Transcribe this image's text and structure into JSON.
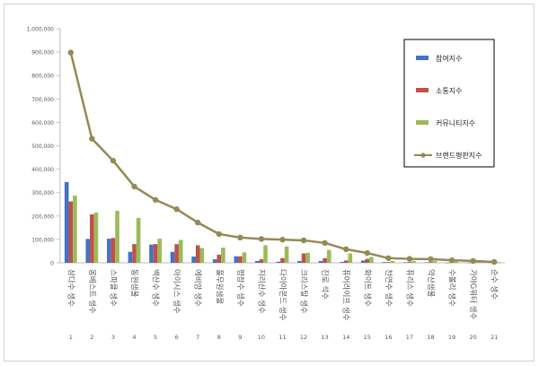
{
  "chart_data": {
    "type": "bar",
    "title": "",
    "xlabel": "",
    "ylabel": "",
    "ylim": [
      0,
      1000000
    ],
    "yticks": [
      0,
      100000,
      200000,
      300000,
      400000,
      500000,
      600000,
      700000,
      800000,
      900000,
      1000000
    ],
    "ytick_labels": [
      "0",
      "100,000",
      "200,000",
      "300,000",
      "400,000",
      "500,000",
      "600,000",
      "700,000",
      "800,000",
      "900,000",
      "1,000,000"
    ],
    "grid": false,
    "legend_position": "top-right",
    "categories": [
      "삼다수 생수",
      "몽베스트 생수",
      "스파클 생수",
      "동원샘물",
      "백산수 생수",
      "아이시스 생수",
      "에비앙 생수",
      "풀무원샘물",
      "평창수 생수",
      "지리산수 생수",
      "다이아몬드 생수",
      "크리스탈 생수",
      "진로 석수",
      "퓨어라이프 생수",
      "화이트 생수",
      "천연수 생수",
      "퓨리스 생수",
      "약산샘물",
      "수볼리 생수",
      "가야G워터 생수",
      "순수 생수"
    ],
    "rank_labels": [
      "1",
      "2",
      "3",
      "4",
      "5",
      "6",
      "7",
      "8",
      "9",
      "10",
      "11",
      "12",
      "13",
      "14",
      "15",
      "16",
      "17",
      "18",
      "19",
      "20",
      "21"
    ],
    "series": [
      {
        "name": "참여지수",
        "kind": "bar",
        "color": "#4472c4",
        "values": [
          345000,
          102000,
          103000,
          47000,
          78000,
          47000,
          27000,
          15000,
          28000,
          8000,
          5000,
          8000,
          8000,
          4000,
          10000,
          3000,
          2000,
          2000,
          1000,
          1000,
          1000
        ]
      },
      {
        "name": "소통지수",
        "kind": "bar",
        "color": "#c0504d",
        "values": [
          262000,
          207000,
          106000,
          80000,
          80000,
          80000,
          75000,
          35000,
          28000,
          15000,
          20000,
          40000,
          20000,
          10000,
          17000,
          3000,
          3000,
          3000,
          2000,
          2000,
          1000
        ]
      },
      {
        "name": "커뮤니티지수",
        "kind": "bar",
        "color": "#9bbb59",
        "values": [
          287000,
          215000,
          222000,
          192000,
          103000,
          98000,
          63000,
          65000,
          45000,
          75000,
          70000,
          43000,
          55000,
          40000,
          25000,
          8000,
          8000,
          8000,
          5000,
          5000,
          3000
        ]
      },
      {
        "name": "브랜드평판지수",
        "kind": "line",
        "color": "#948a54",
        "values": [
          898000,
          530000,
          436000,
          326000,
          269000,
          229000,
          172000,
          123000,
          108000,
          102000,
          99000,
          96000,
          85000,
          58000,
          42000,
          20000,
          17000,
          16000,
          11000,
          8000,
          4000
        ]
      }
    ]
  }
}
